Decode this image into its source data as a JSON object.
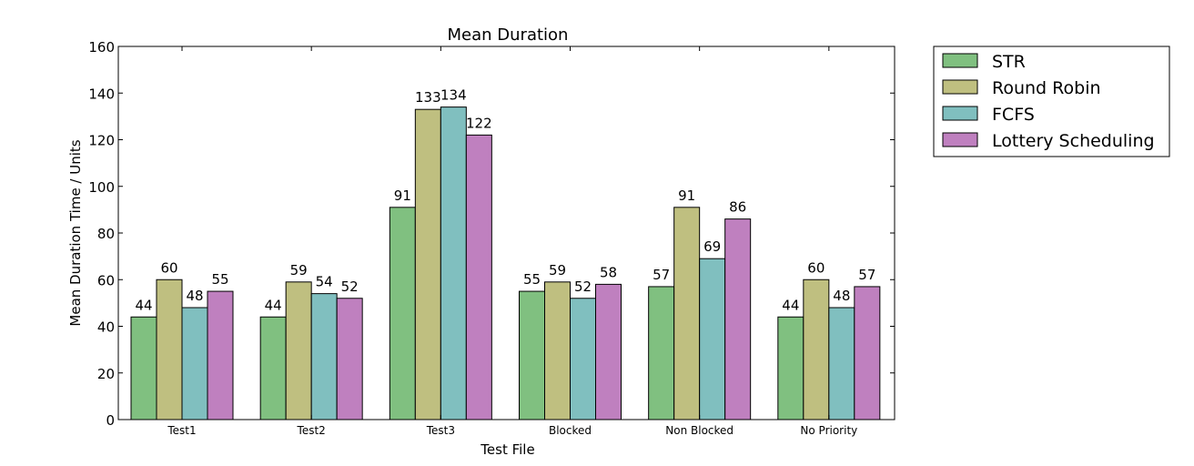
{
  "chart_data": {
    "type": "bar",
    "title": "Mean Duration",
    "xlabel": "Test File",
    "ylabel": "Mean Duration Time / Units",
    "categories": [
      "Test1",
      "Test2",
      "Test3",
      "Blocked",
      "Non Blocked",
      "No Priority"
    ],
    "ylim": [
      0,
      160
    ],
    "yticks": [
      0,
      20,
      40,
      60,
      80,
      100,
      120,
      140,
      160
    ],
    "grid": false,
    "legend_position": "outside-top-right",
    "series": [
      {
        "name": "STR",
        "color": "#80c080",
        "values": [
          44,
          44,
          91,
          55,
          57,
          44
        ],
        "labels": [
          "44",
          "44",
          "91",
          "55",
          "57",
          "44"
        ]
      },
      {
        "name": "Round Robin",
        "color": "#bfbf80",
        "values": [
          60,
          59,
          133,
          59,
          91,
          60
        ],
        "labels": [
          "60",
          "59",
          "133",
          "59",
          "91",
          "60"
        ]
      },
      {
        "name": "FCFS",
        "color": "#80bfbf",
        "values": [
          48,
          54,
          134,
          52,
          69,
          48
        ],
        "labels": [
          "48",
          "54",
          "134",
          "52",
          "69",
          "48"
        ]
      },
      {
        "name": "Lottery Scheduling",
        "color": "#bf80bf",
        "values": [
          55,
          52,
          122,
          58,
          86,
          57
        ],
        "labels": [
          "55",
          "52",
          "122",
          "58",
          "86",
          "57"
        ]
      }
    ]
  }
}
